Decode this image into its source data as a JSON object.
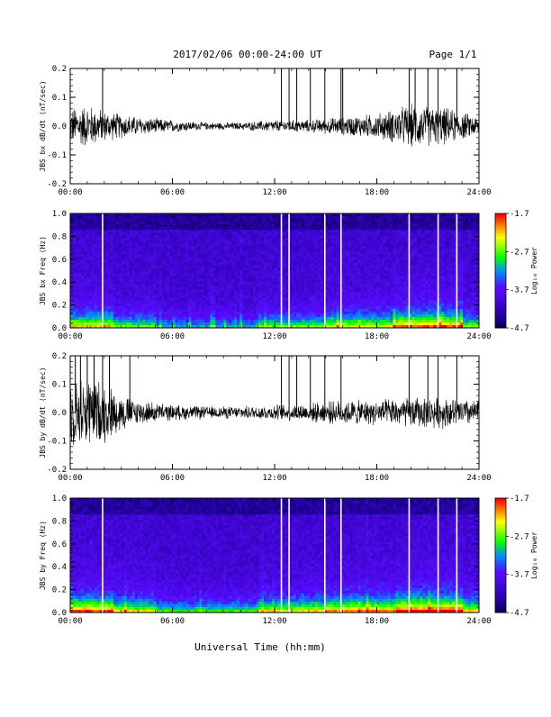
{
  "header": {
    "date_title": "2017/02/06  00:00-24:00 UT",
    "page_label": "Page 1/1"
  },
  "footer": {
    "xlabel": "Universal Time (hh:mm)"
  },
  "colorbar": {
    "label": "Log₁₀ Power",
    "ticks": [
      "-1.7",
      "-2.7",
      "-3.7",
      "-4.7"
    ],
    "range": [
      -4.7,
      -1.7
    ]
  },
  "chart_data": [
    {
      "type": "line",
      "ylabel": "JBS bx dB/dt (nT/sec)",
      "xlim": [
        0,
        24
      ],
      "ylim": [
        -0.2,
        0.2
      ],
      "x_ticks": [
        "00:00",
        "06:00",
        "12:00",
        "18:00",
        "24:00"
      ],
      "y_ticks": [
        "0.2",
        "0.1",
        "0.0",
        "-0.1",
        "-0.2"
      ],
      "spikes_hours": [
        1.9,
        12.4,
        12.85,
        13.3,
        14.1,
        14.95,
        15.9,
        16.0,
        19.9,
        20.25,
        21.0,
        21.6,
        22.7
      ],
      "envelope": {
        "hours": [
          0,
          1,
          2,
          4,
          6,
          8,
          10,
          12,
          14,
          16,
          18,
          20,
          22,
          24
        ],
        "amplitude": [
          0.06,
          0.07,
          0.05,
          0.03,
          0.02,
          0.012,
          0.012,
          0.02,
          0.02,
          0.03,
          0.04,
          0.07,
          0.06,
          0.03
        ]
      }
    },
    {
      "type": "heatmap",
      "ylabel": "JBS bx Freq (Hz)",
      "xlim": [
        0,
        24
      ],
      "ylim": [
        0.0,
        1.0
      ],
      "x_ticks": [
        "00:00",
        "06:00",
        "12:00",
        "18:00",
        "24:00"
      ],
      "y_ticks": [
        "1.0",
        "0.8",
        "0.6",
        "0.4",
        "0.2",
        "0.0"
      ],
      "gap_hours": [
        1.9,
        12.4,
        12.85,
        14.95,
        15.9,
        19.9,
        21.6,
        22.7
      ]
    },
    {
      "type": "line",
      "ylabel": "JBS by dB/dt (nT/sec)",
      "xlim": [
        0,
        24
      ],
      "ylim": [
        -0.2,
        0.2
      ],
      "x_ticks": [
        "00:00",
        "06:00",
        "12:00",
        "18:00",
        "24:00"
      ],
      "y_ticks": [
        "0.2",
        "0.1",
        "0.0",
        "-0.1",
        "-0.2"
      ],
      "spikes_hours": [
        0.3,
        0.6,
        1.0,
        1.4,
        1.9,
        2.3,
        3.5,
        12.4,
        12.85,
        13.3,
        14.1,
        14.95,
        15.9,
        19.9,
        21.0,
        21.6,
        22.7
      ],
      "envelope": {
        "hours": [
          0,
          1,
          2,
          3,
          4,
          6,
          8,
          10,
          12,
          14,
          16,
          18,
          20,
          22,
          24
        ],
        "amplitude": [
          0.1,
          0.12,
          0.1,
          0.06,
          0.04,
          0.025,
          0.02,
          0.02,
          0.025,
          0.03,
          0.04,
          0.04,
          0.05,
          0.05,
          0.04
        ]
      }
    },
    {
      "type": "heatmap",
      "ylabel": "JBS by Freq (Hz)",
      "xlim": [
        0,
        24
      ],
      "ylim": [
        0.0,
        1.0
      ],
      "x_ticks": [
        "00:00",
        "06:00",
        "12:00",
        "18:00",
        "24:00"
      ],
      "y_ticks": [
        "1.0",
        "0.8",
        "0.6",
        "0.4",
        "0.2",
        "0.0"
      ],
      "gap_hours": [
        1.9,
        12.4,
        12.85,
        14.95,
        15.9,
        19.9,
        21.6,
        22.7
      ]
    }
  ]
}
